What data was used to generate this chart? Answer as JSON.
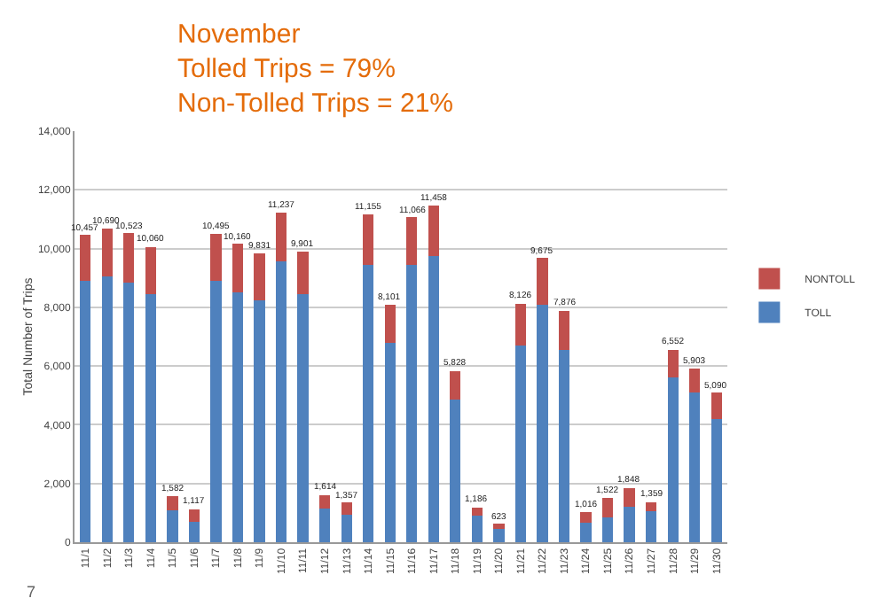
{
  "chart_data": {
    "type": "bar",
    "stacked": true,
    "title": "November\nTolled Trips = 79%\nNon-Tolled Trips = 21%",
    "ylabel": "Total Number of Trips",
    "categories": [
      "11/1",
      "11/2",
      "11/3",
      "11/4",
      "11/5",
      "11/6",
      "11/7",
      "11/8",
      "11/9",
      "11/10",
      "11/11",
      "11/12",
      "11/13",
      "11/14",
      "11/15",
      "11/16",
      "11/17",
      "11/18",
      "11/19",
      "11/20",
      "11/21",
      "11/22",
      "11/23",
      "11/24",
      "11/25",
      "11/26",
      "11/27",
      "11/28",
      "11/29",
      "11/30"
    ],
    "series": [
      {
        "name": "TOLL",
        "color": "#4f81bd",
        "values": [
          8900,
          9050,
          8850,
          8450,
          1100,
          700,
          8900,
          8500,
          8250,
          9550,
          8450,
          1150,
          950,
          9450,
          6800,
          9450,
          9750,
          4850,
          900,
          450,
          6700,
          8100,
          6550,
          650,
          850,
          1200,
          1050,
          5600,
          5100,
          4200
        ]
      },
      {
        "name": "NONTOLL",
        "color": "#c0504d",
        "values": [
          1557,
          1640,
          1673,
          1610,
          482,
          417,
          1595,
          1660,
          1581,
          1687,
          1451,
          464,
          407,
          1705,
          1301,
          1616,
          1708,
          978,
          286,
          173,
          1426,
          1575,
          1326,
          366,
          672,
          648,
          309,
          952,
          803,
          890
        ]
      }
    ],
    "totals": [
      "10,457",
      "10,690",
      "10,523",
      "10,060",
      "1,582",
      "1,117",
      "10,495",
      "10,160",
      "9,831",
      "11,237",
      "9,901",
      "1,614",
      "1,357",
      "11,155",
      "8,101",
      "11,066",
      "11,458",
      "5,828",
      "1,186",
      "623",
      "8,126",
      "9,675",
      "7,876",
      "1,016",
      "1,522",
      "1,848",
      "1,359",
      "6,552",
      "5,903",
      "5,090"
    ],
    "ylim": [
      0,
      14000
    ],
    "yticks": [
      {
        "value": 0,
        "label": "0"
      },
      {
        "value": 2000,
        "label": "2,000"
      },
      {
        "value": 4000,
        "label": "4,000"
      },
      {
        "value": 6000,
        "label": "6,000"
      },
      {
        "value": 8000,
        "label": "8,000"
      },
      {
        "value": 10000,
        "label": "10,000"
      },
      {
        "value": 12000,
        "label": "12,000"
      },
      {
        "value": 14000,
        "label": "14,000"
      }
    ],
    "grid": "y",
    "legend": "right",
    "annotations": [
      "7"
    ]
  }
}
